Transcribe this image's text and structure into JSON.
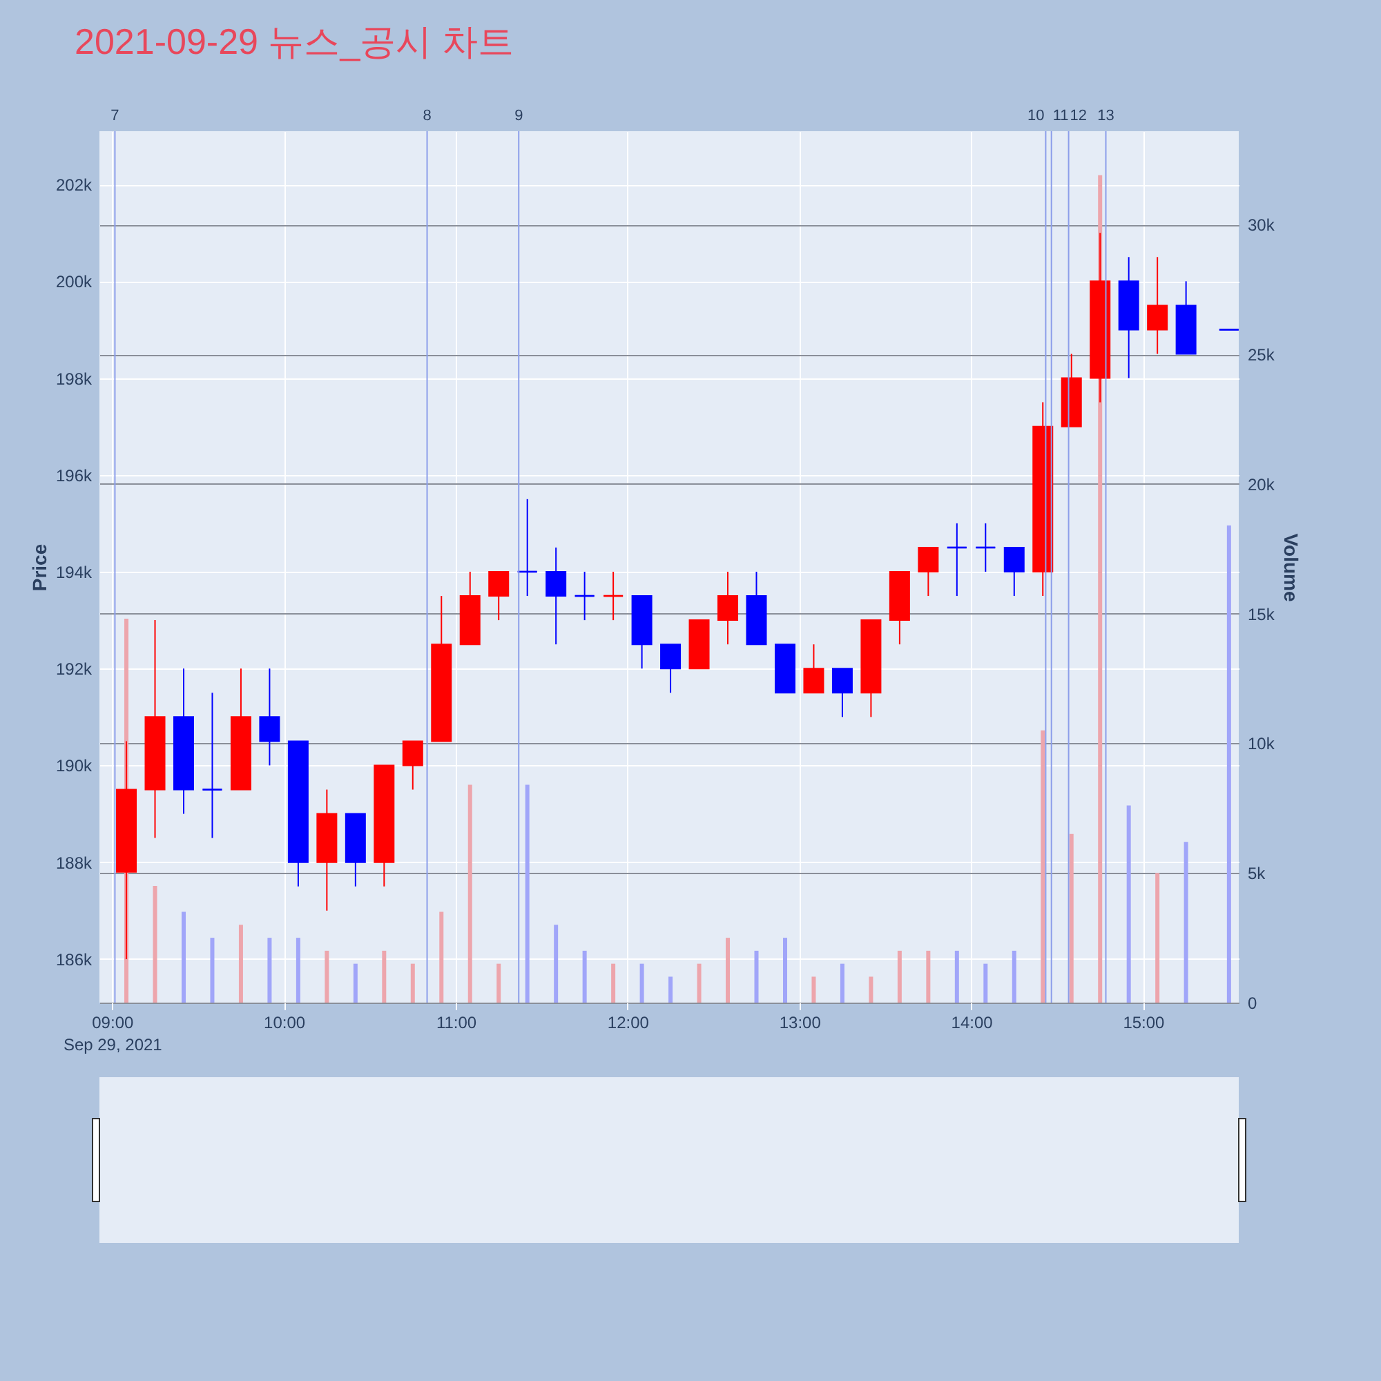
{
  "chart_data": {
    "type": "candlestick",
    "title": "2021-09-29 뉴스_공시 차트",
    "ylabel": "Price",
    "y2label": "Volume",
    "x": [
      "2021-09-29T09:05",
      "2021-09-29T09:15",
      "2021-09-29T09:25",
      "2021-09-29T09:35",
      "2021-09-29T09:45",
      "2021-09-29T09:55",
      "2021-09-29T10:05",
      "2021-09-29T10:15",
      "2021-09-29T10:25",
      "2021-09-29T10:35",
      "2021-09-29T10:45",
      "2021-09-29T10:55",
      "2021-09-29T11:05",
      "2021-09-29T11:15",
      "2021-09-29T11:25",
      "2021-09-29T11:35",
      "2021-09-29T11:45",
      "2021-09-29T11:55",
      "2021-09-29T12:05",
      "2021-09-29T12:15",
      "2021-09-29T12:25",
      "2021-09-29T12:35",
      "2021-09-29T12:45",
      "2021-09-29T12:55",
      "2021-09-29T13:05",
      "2021-09-29T13:15",
      "2021-09-29T13:25",
      "2021-09-29T13:35",
      "2021-09-29T13:45",
      "2021-09-29T13:55",
      "2021-09-29T14:05",
      "2021-09-29T14:15",
      "2021-09-29T14:25",
      "2021-09-29T14:35",
      "2021-09-29T14:45",
      "2021-09-29T14:55",
      "2021-09-29T15:05",
      "2021-09-29T15:15",
      "2021-09-29T15:30"
    ],
    "series": [
      {
        "type": "bar",
        "axis": "y2",
        "values": [
          14800,
          4500,
          3500,
          2500,
          3000,
          2500,
          2500,
          2000,
          1500,
          2000,
          1500,
          3500,
          8400,
          1500,
          8400,
          3000,
          2000,
          1500,
          1500,
          1000,
          1500,
          2500,
          2000,
          2500,
          1000,
          1500,
          1000,
          2000,
          2000,
          2000,
          1500,
          2000,
          10500,
          6500,
          31900,
          7600,
          5000,
          6200,
          18400
        ],
        "colors": [
          "#eda5ac",
          "#eda5ac",
          "#a0a5f9",
          "#a0a5f9",
          "#eda5ac",
          "#a0a5f9",
          "#a0a5f9",
          "#eda5ac",
          "#a0a5f9",
          "#eda5ac",
          "#eda5ac",
          "#eda5ac",
          "#eda5ac",
          "#eda5ac",
          "#a0a5f9",
          "#a0a5f9",
          "#a0a5f9",
          "#eda5ac",
          "#a0a5f9",
          "#a0a5f9",
          "#eda5ac",
          "#eda5ac",
          "#a0a5f9",
          "#a0a5f9",
          "#eda5ac",
          "#a0a5f9",
          "#eda5ac",
          "#eda5ac",
          "#eda5ac",
          "#a0a5f9",
          "#a0a5f9",
          "#a0a5f9",
          "#eda5ac",
          "#eda5ac",
          "#eda5ac",
          "#a0a5f9",
          "#eda5ac",
          "#a0a5f9",
          "#a0a5f9"
        ]
      },
      {
        "ohlc": [
          [
            187800,
            190500,
            186000,
            189500
          ],
          [
            189500,
            193000,
            188500,
            191000
          ],
          [
            191000,
            192000,
            189000,
            189500
          ],
          [
            189500,
            191500,
            188500,
            189500
          ],
          [
            189500,
            192000,
            189500,
            191000
          ],
          [
            191000,
            192000,
            190000,
            190500
          ],
          [
            190500,
            190500,
            187500,
            188000
          ],
          [
            188000,
            189500,
            187000,
            189000
          ],
          [
            189000,
            189000,
            187500,
            188000
          ],
          [
            188000,
            190000,
            187500,
            190000
          ],
          [
            190000,
            190500,
            189500,
            190500
          ],
          [
            190500,
            193500,
            190500,
            192500
          ],
          [
            192500,
            194000,
            192500,
            193500
          ],
          [
            193500,
            194000,
            193000,
            194000
          ],
          [
            194000,
            195500,
            193500,
            194000
          ],
          [
            194000,
            194500,
            192500,
            193500
          ],
          [
            193500,
            194000,
            193000,
            193500
          ],
          [
            193500,
            194000,
            193000,
            193500
          ],
          [
            193500,
            193500,
            192000,
            192500
          ],
          [
            192500,
            192500,
            191500,
            192000
          ],
          [
            192000,
            193000,
            192000,
            193000
          ],
          [
            193000,
            194000,
            192500,
            193500
          ],
          [
            193500,
            194000,
            192500,
            192500
          ],
          [
            192500,
            192500,
            191500,
            191500
          ],
          [
            191500,
            192500,
            191500,
            192000
          ],
          [
            192000,
            192000,
            191000,
            191500
          ],
          [
            191500,
            193000,
            191000,
            193000
          ],
          [
            193000,
            194000,
            192500,
            194000
          ],
          [
            194000,
            194500,
            193500,
            194500
          ],
          [
            194500,
            195000,
            193500,
            194500
          ],
          [
            194500,
            195000,
            194000,
            194500
          ],
          [
            194500,
            194500,
            193500,
            194000
          ],
          [
            194000,
            197500,
            193500,
            197000
          ],
          [
            197000,
            198500,
            197000,
            198000
          ],
          [
            198000,
            201000,
            197500,
            200000
          ],
          [
            200000,
            200500,
            198000,
            199000
          ],
          [
            199000,
            200500,
            198500,
            199500
          ],
          [
            199500,
            200000,
            198500,
            198500
          ],
          [
            199000,
            199000,
            199000,
            199000
          ]
        ],
        "colors": [
          "#ff0000",
          "#ff0000",
          "#0000ff",
          "#0000ff",
          "#ff0000",
          "#0000ff",
          "#0000ff",
          "#ff0000",
          "#0000ff",
          "#ff0000",
          "#ff0000",
          "#ff0000",
          "#ff0000",
          "#ff0000",
          "#0000ff",
          "#0000ff",
          "#0000ff",
          "#ff0000",
          "#0000ff",
          "#0000ff",
          "#ff0000",
          "#ff0000",
          "#0000ff",
          "#0000ff",
          "#ff0000",
          "#0000ff",
          "#ff0000",
          "#ff0000",
          "#ff0000",
          "#0000ff",
          "#0000ff",
          "#0000ff",
          "#ff0000",
          "#ff0000",
          "#ff0000",
          "#0000ff",
          "#ff0000",
          "#0000ff",
          "#0000ff"
        ]
      }
    ],
    "xlim": [
      "2021-09-29T08:58",
      "2021-09-29T15:31"
    ],
    "xticks": [
      {
        "value": "2021-09-29T09:00",
        "label": "09:00\nSep 29, 2021"
      },
      {
        "value": "2021-09-29T10:00",
        "label": "10:00"
      },
      {
        "value": "2021-09-29T11:00",
        "label": "11:00"
      },
      {
        "value": "2021-09-29T12:00",
        "label": "12:00"
      },
      {
        "value": "2021-09-29T13:00",
        "label": "13:00"
      },
      {
        "value": "2021-09-29T14:00",
        "label": "14:00"
      },
      {
        "value": "2021-09-29T15:00",
        "label": "15:00"
      }
    ],
    "ylim": [
      185100,
      203100
    ],
    "yticks": [
      {
        "value": 186000,
        "label": "186k"
      },
      {
        "value": 188000,
        "label": "188k"
      },
      {
        "value": 190000,
        "label": "190k"
      },
      {
        "value": 192000,
        "label": "192k"
      },
      {
        "value": 194000,
        "label": "194k"
      },
      {
        "value": 196000,
        "label": "196k"
      },
      {
        "value": 198000,
        "label": "198k"
      },
      {
        "value": 200000,
        "label": "200k"
      },
      {
        "value": 202000,
        "label": "202k"
      }
    ],
    "y2lim": [
      0,
      33600
    ],
    "y2ticks": [
      0,
      {
        "value": 5000,
        "label": "5k"
      },
      {
        "value": 10000,
        "label": "10k"
      },
      {
        "value": 15000,
        "label": "15k"
      },
      {
        "value": 20000,
        "label": "20k"
      },
      {
        "value": 25000,
        "label": "25k"
      },
      {
        "value": 30000,
        "label": "30k"
      }
    ],
    "ref_lines": [
      {
        "axis": "x",
        "value": "2021-09-29T09:01",
        "label": "7",
        "color": "#8c9eea"
      },
      {
        "axis": "x",
        "value": "2021-09-29T10:50",
        "label": "8",
        "color": "#8c9eea"
      },
      {
        "axis": "x",
        "value": "2021-09-29T11:22",
        "label": "9",
        "color": "#8c9eea"
      },
      {
        "axis": "x",
        "value": "2021-09-29T14:26",
        "label": "10",
        "color": "#8c9eea"
      },
      {
        "axis": "x",
        "value": "2021-09-29T14:28",
        "label": "11",
        "color": "#8c9eea"
      },
      {
        "axis": "x",
        "value": "2021-09-29T14:34",
        "label": "12",
        "color": "#8c9eea"
      },
      {
        "axis": "x",
        "value": "2021-09-29T14:47",
        "label": "13",
        "color": "#8c9eea"
      }
    ],
    "grid": true
  }
}
